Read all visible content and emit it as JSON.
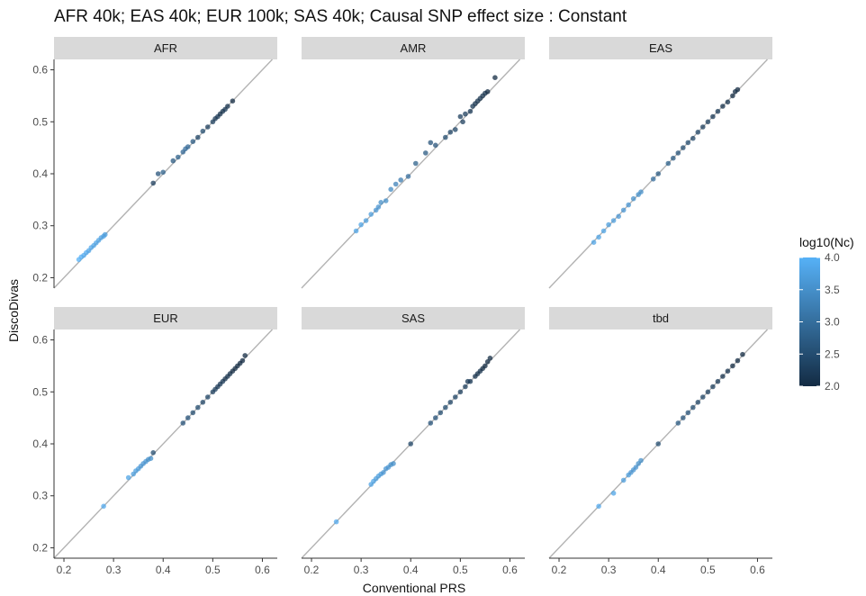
{
  "title": "AFR 40k; EAS 40k; EUR 100k; SAS 40k; Causal SNP effect size : Constant",
  "chart_data": {
    "type": "scatter",
    "title": "AFR 40k; EAS 40k; EUR 100k; SAS 40k; Causal SNP effect size : Constant",
    "xlabel": "Conventional PRS",
    "ylabel": "DiscoDivas",
    "xlim": [
      0.18,
      0.63
    ],
    "ylim": [
      0.18,
      0.62
    ],
    "x_ticks": [
      "0.2",
      "0.3",
      "0.4",
      "0.5",
      "0.6"
    ],
    "y_ticks": [
      "0.2",
      "0.3",
      "0.4",
      "0.5",
      "0.6"
    ],
    "reference_line": "y = x",
    "grid": false,
    "color_legend": {
      "title": "log10(Nc)",
      "min": 2.0,
      "max": 4.0,
      "ticks": [
        "4.0",
        "3.5",
        "3.0",
        "2.5",
        "2.0"
      ],
      "low_color": "#132B43",
      "high_color": "#56B1F7",
      "position": "right"
    },
    "panels": [
      {
        "name": "AFR",
        "points": [
          [
            0.23,
            0.235,
            4.0
          ],
          [
            0.235,
            0.24,
            3.95
          ],
          [
            0.24,
            0.243,
            3.9
          ],
          [
            0.245,
            0.248,
            3.9
          ],
          [
            0.25,
            0.252,
            3.85
          ],
          [
            0.255,
            0.258,
            3.85
          ],
          [
            0.26,
            0.262,
            3.8
          ],
          [
            0.265,
            0.267,
            3.8
          ],
          [
            0.27,
            0.272,
            3.8
          ],
          [
            0.275,
            0.277,
            3.75
          ],
          [
            0.28,
            0.28,
            3.75
          ],
          [
            0.283,
            0.283,
            3.7
          ],
          [
            0.38,
            0.382,
            2.3
          ],
          [
            0.39,
            0.4,
            2.6
          ],
          [
            0.4,
            0.403,
            2.8
          ],
          [
            0.42,
            0.425,
            2.7
          ],
          [
            0.43,
            0.432,
            2.8
          ],
          [
            0.44,
            0.442,
            2.9
          ],
          [
            0.445,
            0.448,
            3.0
          ],
          [
            0.45,
            0.452,
            2.9
          ],
          [
            0.46,
            0.462,
            2.7
          ],
          [
            0.47,
            0.47,
            2.4
          ],
          [
            0.48,
            0.482,
            2.5
          ],
          [
            0.49,
            0.49,
            2.3
          ],
          [
            0.5,
            0.5,
            2.3
          ],
          [
            0.505,
            0.506,
            2.2
          ],
          [
            0.51,
            0.51,
            2.2
          ],
          [
            0.515,
            0.515,
            2.1
          ],
          [
            0.52,
            0.52,
            2.1
          ],
          [
            0.525,
            0.524,
            2.2
          ],
          [
            0.53,
            0.53,
            2.1
          ],
          [
            0.54,
            0.54,
            2.0
          ]
        ]
      },
      {
        "name": "AMR",
        "points": [
          [
            0.29,
            0.29,
            3.8
          ],
          [
            0.3,
            0.302,
            3.8
          ],
          [
            0.31,
            0.31,
            3.7
          ],
          [
            0.32,
            0.322,
            3.7
          ],
          [
            0.33,
            0.33,
            3.6
          ],
          [
            0.335,
            0.336,
            3.6
          ],
          [
            0.34,
            0.345,
            3.5
          ],
          [
            0.35,
            0.348,
            3.5
          ],
          [
            0.36,
            0.37,
            3.4
          ],
          [
            0.37,
            0.38,
            3.3
          ],
          [
            0.38,
            0.388,
            3.2
          ],
          [
            0.395,
            0.395,
            3.0
          ],
          [
            0.41,
            0.42,
            2.8
          ],
          [
            0.43,
            0.44,
            2.7
          ],
          [
            0.44,
            0.46,
            2.6
          ],
          [
            0.45,
            0.455,
            2.6
          ],
          [
            0.47,
            0.47,
            2.5
          ],
          [
            0.48,
            0.48,
            2.4
          ],
          [
            0.49,
            0.485,
            2.4
          ],
          [
            0.5,
            0.51,
            2.3
          ],
          [
            0.505,
            0.5,
            2.3
          ],
          [
            0.51,
            0.515,
            2.3
          ],
          [
            0.52,
            0.52,
            2.2
          ],
          [
            0.525,
            0.53,
            2.2
          ],
          [
            0.53,
            0.535,
            2.1
          ],
          [
            0.535,
            0.54,
            2.1
          ],
          [
            0.54,
            0.545,
            2.1
          ],
          [
            0.545,
            0.55,
            2.1
          ],
          [
            0.55,
            0.555,
            2.1
          ],
          [
            0.555,
            0.558,
            2.0
          ],
          [
            0.57,
            0.585,
            2.0
          ]
        ]
      },
      {
        "name": "EAS",
        "points": [
          [
            0.27,
            0.268,
            3.8
          ],
          [
            0.28,
            0.278,
            3.8
          ],
          [
            0.29,
            0.29,
            3.8
          ],
          [
            0.3,
            0.302,
            3.7
          ],
          [
            0.31,
            0.31,
            3.7
          ],
          [
            0.32,
            0.318,
            3.6
          ],
          [
            0.33,
            0.33,
            3.6
          ],
          [
            0.34,
            0.34,
            3.6
          ],
          [
            0.35,
            0.352,
            3.5
          ],
          [
            0.36,
            0.36,
            3.5
          ],
          [
            0.365,
            0.365,
            3.5
          ],
          [
            0.39,
            0.39,
            3.0
          ],
          [
            0.4,
            0.4,
            2.7
          ],
          [
            0.42,
            0.42,
            2.8
          ],
          [
            0.43,
            0.43,
            2.7
          ],
          [
            0.44,
            0.44,
            2.6
          ],
          [
            0.45,
            0.45,
            2.5
          ],
          [
            0.46,
            0.46,
            2.5
          ],
          [
            0.47,
            0.468,
            2.4
          ],
          [
            0.48,
            0.48,
            2.4
          ],
          [
            0.49,
            0.49,
            2.3
          ],
          [
            0.5,
            0.5,
            2.3
          ],
          [
            0.51,
            0.51,
            2.2
          ],
          [
            0.52,
            0.52,
            2.2
          ],
          [
            0.53,
            0.53,
            2.1
          ],
          [
            0.54,
            0.538,
            2.1
          ],
          [
            0.55,
            0.55,
            2.0
          ],
          [
            0.555,
            0.558,
            2.0
          ],
          [
            0.56,
            0.562,
            2.0
          ]
        ]
      },
      {
        "name": "EUR",
        "points": [
          [
            0.28,
            0.28,
            3.9
          ],
          [
            0.33,
            0.335,
            3.8
          ],
          [
            0.34,
            0.342,
            3.7
          ],
          [
            0.345,
            0.348,
            3.7
          ],
          [
            0.35,
            0.352,
            3.7
          ],
          [
            0.355,
            0.357,
            3.6
          ],
          [
            0.36,
            0.362,
            3.6
          ],
          [
            0.365,
            0.366,
            3.6
          ],
          [
            0.37,
            0.37,
            3.5
          ],
          [
            0.375,
            0.372,
            3.5
          ],
          [
            0.38,
            0.383,
            2.5
          ],
          [
            0.44,
            0.44,
            2.6
          ],
          [
            0.45,
            0.45,
            2.6
          ],
          [
            0.46,
            0.46,
            2.5
          ],
          [
            0.47,
            0.47,
            2.5
          ],
          [
            0.48,
            0.48,
            2.4
          ],
          [
            0.49,
            0.49,
            2.4
          ],
          [
            0.5,
            0.5,
            2.3
          ],
          [
            0.505,
            0.505,
            2.3
          ],
          [
            0.51,
            0.51,
            2.2
          ],
          [
            0.515,
            0.515,
            2.2
          ],
          [
            0.52,
            0.52,
            2.2
          ],
          [
            0.525,
            0.525,
            2.1
          ],
          [
            0.53,
            0.53,
            2.1
          ],
          [
            0.535,
            0.535,
            2.1
          ],
          [
            0.54,
            0.54,
            2.0
          ],
          [
            0.545,
            0.545,
            2.0
          ],
          [
            0.55,
            0.55,
            2.0
          ],
          [
            0.555,
            0.555,
            2.0
          ],
          [
            0.56,
            0.56,
            2.0
          ],
          [
            0.565,
            0.57,
            2.0
          ]
        ]
      },
      {
        "name": "SAS",
        "points": [
          [
            0.25,
            0.25,
            3.9
          ],
          [
            0.32,
            0.322,
            3.8
          ],
          [
            0.325,
            0.328,
            3.8
          ],
          [
            0.33,
            0.333,
            3.7
          ],
          [
            0.335,
            0.338,
            3.7
          ],
          [
            0.34,
            0.342,
            3.7
          ],
          [
            0.345,
            0.345,
            3.6
          ],
          [
            0.35,
            0.352,
            3.6
          ],
          [
            0.355,
            0.355,
            3.6
          ],
          [
            0.36,
            0.36,
            3.5
          ],
          [
            0.365,
            0.362,
            3.5
          ],
          [
            0.4,
            0.4,
            2.4
          ],
          [
            0.44,
            0.44,
            2.6
          ],
          [
            0.45,
            0.45,
            2.6
          ],
          [
            0.46,
            0.46,
            2.5
          ],
          [
            0.47,
            0.47,
            2.5
          ],
          [
            0.48,
            0.48,
            2.4
          ],
          [
            0.49,
            0.49,
            2.4
          ],
          [
            0.5,
            0.5,
            2.3
          ],
          [
            0.51,
            0.51,
            2.3
          ],
          [
            0.515,
            0.52,
            2.2
          ],
          [
            0.52,
            0.52,
            2.2
          ],
          [
            0.53,
            0.53,
            2.1
          ],
          [
            0.535,
            0.535,
            2.1
          ],
          [
            0.54,
            0.54,
            2.1
          ],
          [
            0.545,
            0.545,
            2.0
          ],
          [
            0.55,
            0.55,
            2.0
          ],
          [
            0.555,
            0.558,
            2.0
          ],
          [
            0.56,
            0.565,
            2.0
          ]
        ]
      },
      {
        "name": "tbd",
        "points": [
          [
            0.28,
            0.28,
            3.9
          ],
          [
            0.31,
            0.305,
            3.8
          ],
          [
            0.33,
            0.33,
            3.7
          ],
          [
            0.34,
            0.34,
            3.7
          ],
          [
            0.345,
            0.345,
            3.6
          ],
          [
            0.35,
            0.35,
            3.6
          ],
          [
            0.355,
            0.355,
            3.6
          ],
          [
            0.36,
            0.362,
            3.5
          ],
          [
            0.365,
            0.368,
            3.5
          ],
          [
            0.4,
            0.4,
            2.5
          ],
          [
            0.44,
            0.44,
            2.7
          ],
          [
            0.45,
            0.45,
            2.6
          ],
          [
            0.46,
            0.46,
            2.6
          ],
          [
            0.47,
            0.47,
            2.5
          ],
          [
            0.48,
            0.48,
            2.4
          ],
          [
            0.49,
            0.49,
            2.4
          ],
          [
            0.5,
            0.5,
            2.3
          ],
          [
            0.51,
            0.51,
            2.3
          ],
          [
            0.52,
            0.52,
            2.2
          ],
          [
            0.53,
            0.53,
            2.1
          ],
          [
            0.54,
            0.54,
            2.1
          ],
          [
            0.55,
            0.55,
            2.0
          ],
          [
            0.56,
            0.56,
            2.0
          ],
          [
            0.57,
            0.572,
            2.0
          ]
        ]
      }
    ]
  }
}
